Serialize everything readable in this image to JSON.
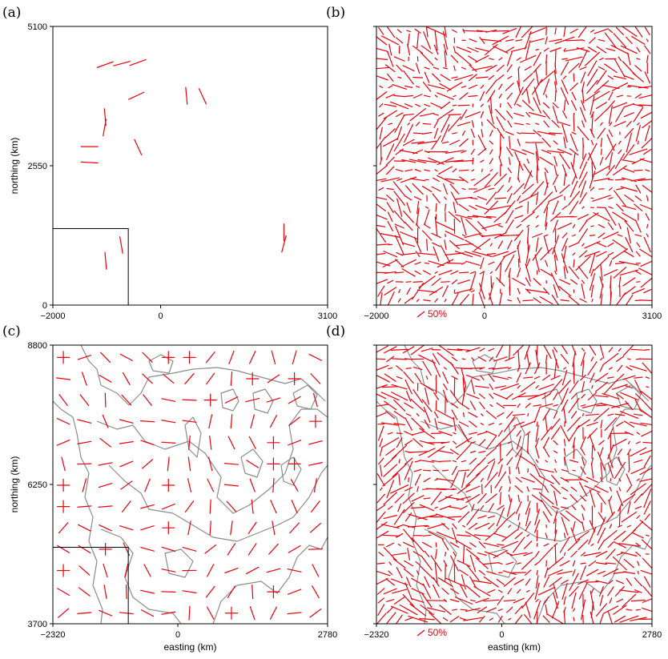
{
  "panels": [
    {
      "label": "(a)",
      "ylabel": "northing (km)",
      "xlabel": "",
      "xticks": [
        "−2000",
        "0",
        "3100"
      ],
      "yticks": [
        "5100",
        "2550",
        "0"
      ],
      "show_scale": false,
      "scale_label": "",
      "coastlines": false,
      "inset_box": true
    },
    {
      "label": "(b)",
      "ylabel": "",
      "xlabel": "",
      "xticks": [
        "−2000",
        "0",
        "3100"
      ],
      "yticks": [],
      "show_scale": true,
      "scale_label": "50%",
      "coastlines": false,
      "inset_box": false
    },
    {
      "label": "(c)",
      "ylabel": "northing (km)",
      "xlabel": "easting (km)",
      "xticks": [
        "−2320",
        "0",
        "2780"
      ],
      "yticks": [
        "8800",
        "6250",
        "3700"
      ],
      "show_scale": false,
      "scale_label": "",
      "coastlines": true,
      "inset_box": true
    },
    {
      "label": "(d)",
      "ylabel": "",
      "xlabel": "easting (km)",
      "xticks": [
        "−2320",
        "0",
        "2780"
      ],
      "yticks": [],
      "show_scale": true,
      "scale_label": "50%",
      "coastlines": true,
      "inset_box": false
    }
  ],
  "chart_data": [
    {
      "type": "scatter",
      "title": "(a)",
      "xlabel": "",
      "ylabel": "northing (km)",
      "xlim": [
        -2000,
        3100
      ],
      "ylim": [
        0,
        5100
      ],
      "marker": "line segment (orientation vector)",
      "color": "#e8000b",
      "inset_box": {
        "x": [
          -2000,
          -600
        ],
        "y": [
          0,
          1400
        ]
      },
      "segments": [
        {
          "x": -1030,
          "y": 4400,
          "angle": 20
        },
        {
          "x": -720,
          "y": 4420,
          "angle": 15
        },
        {
          "x": -420,
          "y": 4440,
          "angle": 20
        },
        {
          "x": -450,
          "y": 3830,
          "angle": 25
        },
        {
          "x": 480,
          "y": 3830,
          "angle": 95
        },
        {
          "x": 780,
          "y": 3820,
          "angle": 115
        },
        {
          "x": -1030,
          "y": 3440,
          "angle": 95
        },
        {
          "x": -1040,
          "y": 3250,
          "angle": 80
        },
        {
          "x": -1320,
          "y": 2900,
          "angle": 0
        },
        {
          "x": -1320,
          "y": 2610,
          "angle": -3
        },
        {
          "x": -420,
          "y": 2890,
          "angle": 115
        },
        {
          "x": 2290,
          "y": 1330,
          "angle": 90
        },
        {
          "x": 2290,
          "y": 1120,
          "angle": 75
        },
        {
          "x": -730,
          "y": 1100,
          "angle": 100
        },
        {
          "x": -1020,
          "y": 810,
          "angle": 95
        }
      ]
    },
    {
      "type": "scatter",
      "title": "(b)",
      "xlabel": "",
      "ylabel": "",
      "xlim": [
        -2000,
        3100
      ],
      "ylim": [
        0,
        5100
      ],
      "marker": "line segment (orientation vector field)",
      "color": "#e8000b",
      "scale_bar": "50%",
      "grid_spacing_km": 170
    },
    {
      "type": "scatter",
      "title": "(c)",
      "xlabel": "easting (km)",
      "ylabel": "northing (km)",
      "xlim": [
        -2320,
        2780
      ],
      "ylim": [
        3700,
        8800
      ],
      "marker": "line segment / cross (orientation vectors)",
      "color": "#e8000b",
      "background": "coastlines",
      "inset_box": {
        "x": [
          -2320,
          -920
        ],
        "y": [
          3700,
          5100
        ]
      },
      "grid_spacing_km": 390
    },
    {
      "type": "scatter",
      "title": "(d)",
      "xlabel": "easting (km)",
      "ylabel": "",
      "xlim": [
        -2320,
        2780
      ],
      "ylim": [
        3700,
        8800
      ],
      "marker": "line segment (orientation vector field)",
      "color": "#e8000b",
      "background": "coastlines",
      "scale_bar": "50%",
      "grid_spacing_km": 170
    }
  ]
}
